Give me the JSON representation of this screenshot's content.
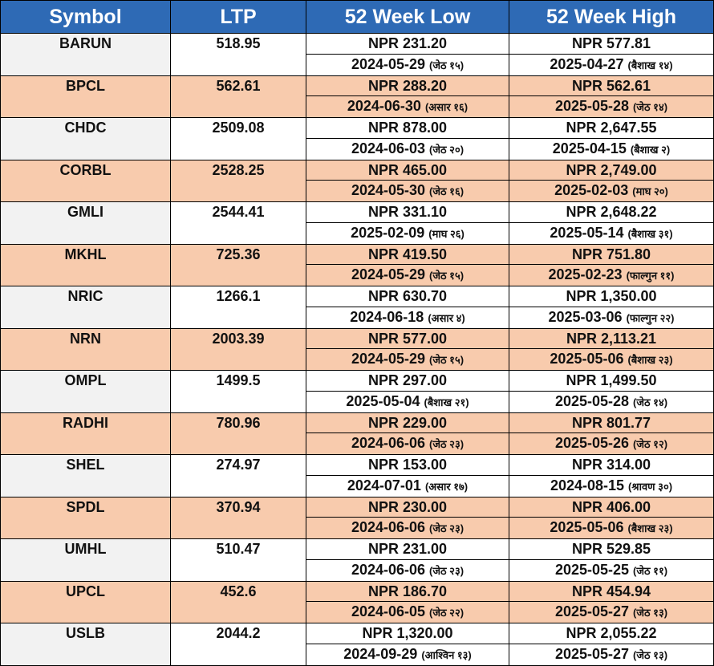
{
  "headers": [
    "Symbol",
    "LTP",
    "52 Week Low",
    "52 Week High"
  ],
  "rows": [
    {
      "symbol": "BARUN",
      "ltp": "518.95",
      "low": "NPR 231.20",
      "low_date": "2024-05-29",
      "low_np": "(जेठ १५)",
      "high": "NPR 577.81",
      "high_date": "2025-04-27",
      "high_np": "(बैशाख १४)"
    },
    {
      "symbol": "BPCL",
      "ltp": "562.61",
      "low": "NPR 288.20",
      "low_date": "2024-06-30",
      "low_np": "(असार १६)",
      "high": "NPR 562.61",
      "high_date": "2025-05-28",
      "high_np": "(जेठ १४)"
    },
    {
      "symbol": "CHDC",
      "ltp": "2509.08",
      "low": "NPR 878.00",
      "low_date": "2024-06-03",
      "low_np": "(जेठ २०)",
      "high": "NPR 2,647.55",
      "high_date": "2025-04-15",
      "high_np": "(बैशाख २)"
    },
    {
      "symbol": "CORBL",
      "ltp": "2528.25",
      "low": "NPR 465.00",
      "low_date": "2024-05-30",
      "low_np": "(जेठ १६)",
      "high": "NPR 2,749.00",
      "high_date": "2025-02-03",
      "high_np": "(माघ २०)"
    },
    {
      "symbol": "GMLI",
      "ltp": "2544.41",
      "low": "NPR 331.10",
      "low_date": "2025-02-09",
      "low_np": "(माघ २६)",
      "high": "NPR 2,648.22",
      "high_date": "2025-05-14",
      "high_np": "(बैशाख ३१)"
    },
    {
      "symbol": "MKHL",
      "ltp": "725.36",
      "low": "NPR 419.50",
      "low_date": "2024-05-29",
      "low_np": "(जेठ १५)",
      "high": "NPR 751.80",
      "high_date": "2025-02-23",
      "high_np": "(फाल्गुन ११)"
    },
    {
      "symbol": "NRIC",
      "ltp": "1266.1",
      "low": "NPR 630.70",
      "low_date": "2024-06-18",
      "low_np": "(असार ४)",
      "high": "NPR 1,350.00",
      "high_date": "2025-03-06",
      "high_np": "(फाल्गुन २२)"
    },
    {
      "symbol": "NRN",
      "ltp": "2003.39",
      "low": "NPR 577.00",
      "low_date": "2024-05-29",
      "low_np": "(जेठ १५)",
      "high": "NPR 2,113.21",
      "high_date": "2025-05-06",
      "high_np": "(बैशाख २३)"
    },
    {
      "symbol": "OMPL",
      "ltp": "1499.5",
      "low": "NPR 297.00",
      "low_date": "2025-05-04",
      "low_np": "(बैशाख २१)",
      "high": "NPR 1,499.50",
      "high_date": "2025-05-28",
      "high_np": "(जेठ १४)"
    },
    {
      "symbol": "RADHI",
      "ltp": "780.96",
      "low": "NPR 229.00",
      "low_date": "2024-06-06",
      "low_np": "(जेठ २३)",
      "high": "NPR 801.77",
      "high_date": "2025-05-26",
      "high_np": "(जेठ १२)"
    },
    {
      "symbol": "SHEL",
      "ltp": "274.97",
      "low": "NPR 153.00",
      "low_date": "2024-07-01",
      "low_np": "(असार १७)",
      "high": "NPR 314.00",
      "high_date": "2024-08-15",
      "high_np": "(श्रावण ३०)"
    },
    {
      "symbol": "SPDL",
      "ltp": "370.94",
      "low": "NPR 230.00",
      "low_date": "2024-06-06",
      "low_np": "(जेठ २३)",
      "high": "NPR 406.00",
      "high_date": "2025-05-06",
      "high_np": "(बैशाख २३)"
    },
    {
      "symbol": "UMHL",
      "ltp": "510.47",
      "low": "NPR 231.00",
      "low_date": "2024-06-06",
      "low_np": "(जेठ २३)",
      "high": "NPR 529.85",
      "high_date": "2025-05-25",
      "high_np": "(जेठ ११)"
    },
    {
      "symbol": "UPCL",
      "ltp": "452.6",
      "low": "NPR 186.70",
      "low_date": "2024-06-05",
      "low_np": "(जेठ २२)",
      "high": "NPR 454.94",
      "high_date": "2025-05-27",
      "high_np": "(जेठ १३)"
    },
    {
      "symbol": "USLB",
      "ltp": "2044.2",
      "low": "NPR 1,320.00",
      "low_date": "2024-09-29",
      "low_np": "(आश्विन १३)",
      "high": "NPR 2,055.22",
      "high_date": "2025-05-27",
      "high_np": "(जेठ १३)"
    }
  ],
  "colors": {
    "header_bg": "#2e6ab5",
    "header_text": "#ffffff",
    "alt_row": "#f8cbad",
    "symbol_bg": "#f2f2f2",
    "border": "#000000"
  }
}
